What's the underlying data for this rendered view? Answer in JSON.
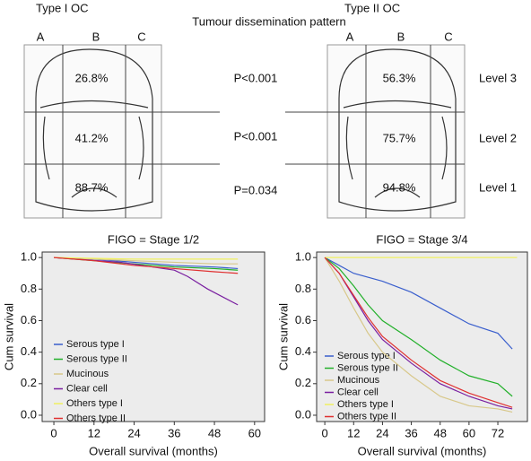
{
  "figure": {
    "left_title": "Type I OC",
    "right_title": "Type II OC",
    "center_title": "Tumour dissemination pattern",
    "columns": [
      "A",
      "B",
      "C"
    ],
    "left_percentages": [
      "26.8%",
      "41.2%",
      "88.7%"
    ],
    "right_percentages": [
      "56.3%",
      "75.7%",
      "94.8%"
    ],
    "p_values": [
      "P<0.001",
      "P<0.001",
      "P=0.034"
    ],
    "levels": [
      "Level 3",
      "Level 2",
      "Level 1"
    ]
  },
  "chart_data": [
    {
      "type": "line",
      "title": "FIGO = Stage 1/2",
      "x_label": "Overall survival (months)",
      "y_label": "Cum survival",
      "xlim": [
        -3.5,
        63
      ],
      "xticks": [
        0,
        12,
        24,
        36,
        48,
        60
      ],
      "ylim": [
        -0.04,
        1.035
      ],
      "yticks": [
        {
          "value": 0,
          "label": "0.0"
        },
        0.2,
        0.4,
        0.6,
        0.8,
        {
          "value": 1,
          "label": "1.0"
        }
      ],
      "legend": "lower left",
      "series": [
        {
          "name": "Serous type I",
          "color": "#3a5fcd",
          "x": [
            0,
            12,
            24,
            36,
            48,
            55
          ],
          "values": [
            1.0,
            0.99,
            0.97,
            0.95,
            0.94,
            0.93
          ]
        },
        {
          "name": "Serous type II",
          "color": "#22b02a",
          "x": [
            0,
            12,
            24,
            36,
            48,
            55
          ],
          "values": [
            1.0,
            0.98,
            0.96,
            0.94,
            0.93,
            0.92
          ]
        },
        {
          "name": "Mucinous",
          "color": "#d8c88a",
          "x": [
            0,
            12,
            24,
            36,
            48,
            55
          ],
          "values": [
            1.0,
            0.99,
            0.98,
            0.97,
            0.96,
            0.96
          ]
        },
        {
          "name": "Clear cell",
          "color": "#7a1fa0",
          "x": [
            0,
            20,
            36,
            40,
            46,
            55
          ],
          "values": [
            1.0,
            0.97,
            0.92,
            0.88,
            0.8,
            0.7
          ]
        },
        {
          "name": "Others type I",
          "color": "#f0f060",
          "x": [
            0,
            24,
            55
          ],
          "values": [
            1.0,
            0.99,
            0.99
          ]
        },
        {
          "name": "Others type II",
          "color": "#e03030",
          "x": [
            0,
            12,
            24,
            36,
            48,
            55
          ],
          "values": [
            1.0,
            0.98,
            0.95,
            0.93,
            0.91,
            0.9
          ]
        }
      ]
    },
    {
      "type": "line",
      "title": "FIGO = Stage 3/4",
      "x_label": "Overall survival (months)",
      "y_label": "Cum survival",
      "xlim": [
        -3.4,
        84.3
      ],
      "xticks": [
        0,
        12,
        24,
        36,
        48,
        60,
        72
      ],
      "ylim": [
        -0.04,
        1.035
      ],
      "yticks": [
        {
          "value": 0,
          "label": "0.0"
        },
        0.2,
        0.4,
        0.6,
        0.8,
        {
          "value": 1,
          "label": "1.0"
        }
      ],
      "legend": "lower left",
      "series": [
        {
          "name": "Serous type I",
          "color": "#3a5fcd",
          "x": [
            0,
            6,
            12,
            24,
            36,
            48,
            60,
            72,
            78
          ],
          "values": [
            1.0,
            0.95,
            0.9,
            0.85,
            0.78,
            0.68,
            0.58,
            0.52,
            0.42
          ]
        },
        {
          "name": "Serous type II",
          "color": "#22b02a",
          "x": [
            0,
            6,
            12,
            18,
            24,
            36,
            48,
            60,
            72,
            78
          ],
          "values": [
            1.0,
            0.93,
            0.82,
            0.7,
            0.6,
            0.48,
            0.35,
            0.25,
            0.2,
            0.12
          ]
        },
        {
          "name": "Mucinous",
          "color": "#d8c88a",
          "x": [
            0,
            6,
            12,
            18,
            24,
            36,
            48,
            60,
            72,
            78
          ],
          "values": [
            1.0,
            0.85,
            0.68,
            0.52,
            0.4,
            0.25,
            0.12,
            0.06,
            0.04,
            0.02
          ]
        },
        {
          "name": "Clear cell",
          "color": "#7a1fa0",
          "x": [
            0,
            6,
            12,
            18,
            24,
            36,
            48,
            60,
            72,
            78
          ],
          "values": [
            1.0,
            0.9,
            0.75,
            0.6,
            0.48,
            0.33,
            0.2,
            0.12,
            0.06,
            0.04
          ]
        },
        {
          "name": "Others type I",
          "color": "#f0f060",
          "x": [
            0,
            40,
            80
          ],
          "values": [
            1.0,
            1.0,
            1.0
          ]
        },
        {
          "name": "Others type II",
          "color": "#e03030",
          "x": [
            0,
            6,
            12,
            18,
            24,
            36,
            48,
            60,
            72,
            78
          ],
          "values": [
            1.0,
            0.9,
            0.76,
            0.62,
            0.5,
            0.35,
            0.22,
            0.14,
            0.08,
            0.05
          ]
        }
      ]
    }
  ]
}
